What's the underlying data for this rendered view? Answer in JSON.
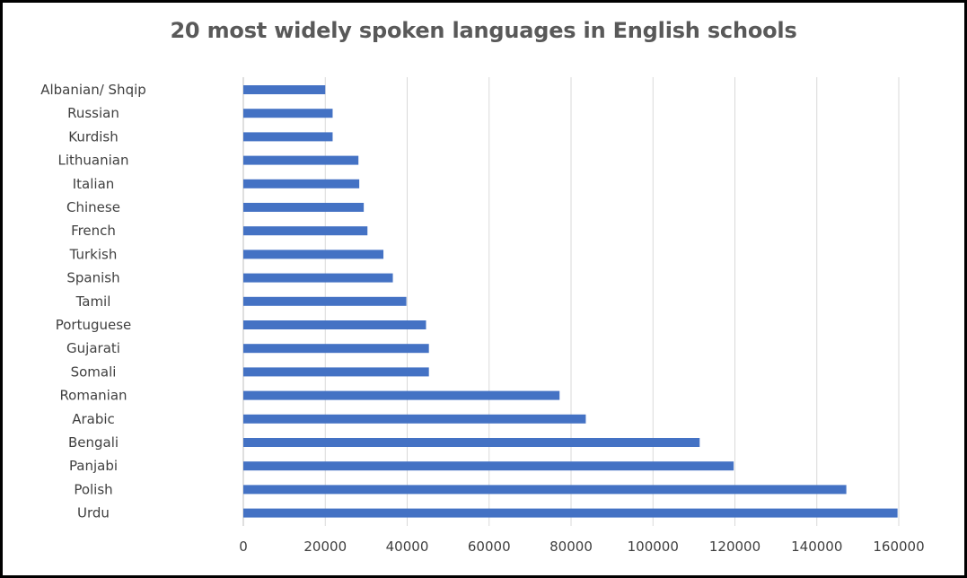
{
  "chart_data": {
    "type": "bar",
    "orientation": "horizontal",
    "title": "20 most widely spoken languages in English schools",
    "categories": [
      "Albanian/ Shqip",
      "Russian",
      "Kurdish",
      "Lithuanian",
      "Italian",
      "Chinese",
      "French",
      "Turkish",
      "Spanish",
      "Tamil",
      "Portuguese",
      "Gujarati",
      "Somali",
      "Romanian",
      "Arabic",
      "Bengali",
      "Panjabi",
      "Polish",
      "Urdu"
    ],
    "values": [
      20000,
      21800,
      21800,
      28100,
      28300,
      29400,
      30300,
      34200,
      36500,
      39800,
      44600,
      45300,
      45300,
      77200,
      83600,
      111400,
      119700,
      147200,
      159700
    ],
    "xlim": [
      0,
      160000
    ],
    "xticks": [
      "0",
      "20000",
      "40000",
      "60000",
      "80000",
      "100000",
      "120000",
      "140000",
      "160000"
    ],
    "xlabel": "",
    "ylabel": "",
    "grid": "vertical",
    "legend": "none",
    "bar_color": "#4472C4",
    "grid_color": "#D9D9D9"
  }
}
